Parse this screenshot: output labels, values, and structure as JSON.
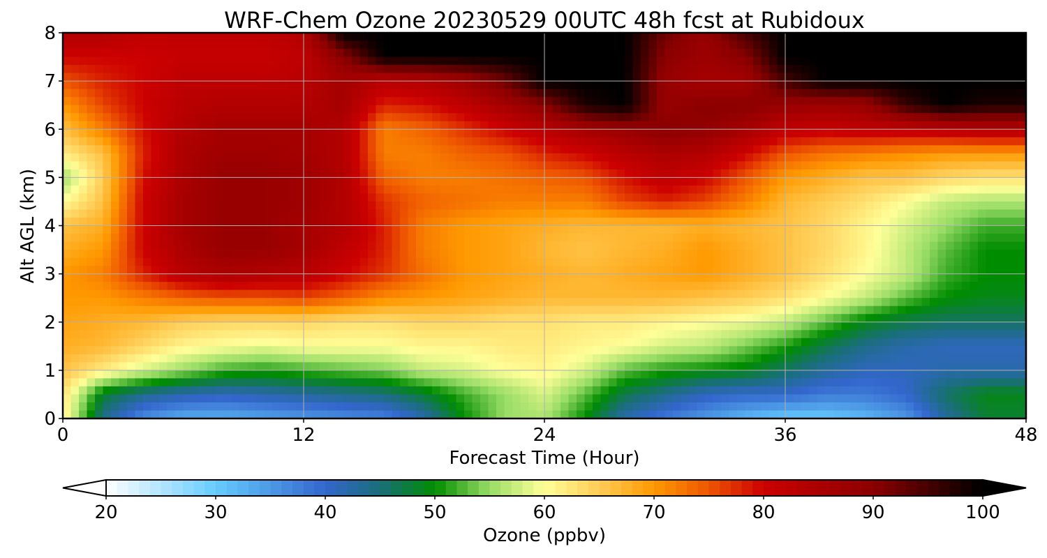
{
  "chart_data": {
    "type": "heatmap",
    "title": "WRF-Chem Ozone  20230529 00UTC 48h fcst at Rubidoux",
    "xlabel": "Forecast Time (Hour)",
    "ylabel": "Alt AGL (km)",
    "x_ticks": [
      "0",
      "12",
      "24",
      "36",
      "48"
    ],
    "y_ticks": [
      "0",
      "1",
      "2",
      "3",
      "4",
      "5",
      "6",
      "7",
      "8"
    ],
    "xlim": [
      0,
      48
    ],
    "ylim": [
      0,
      8
    ],
    "grid": true,
    "x": [
      0,
      2,
      4,
      6,
      8,
      10,
      12,
      14,
      16,
      18,
      20,
      22,
      24,
      26,
      28,
      30,
      32,
      34,
      36,
      38,
      40,
      42,
      44,
      46,
      48
    ],
    "y": [
      0,
      0.5,
      1,
      1.5,
      2,
      2.5,
      3,
      3.5,
      4,
      4.5,
      5,
      5.5,
      6,
      6.5,
      7,
      7.5,
      8
    ],
    "values": [
      [
        62,
        44,
        36,
        33,
        33,
        34,
        35,
        36,
        37,
        42,
        50,
        55,
        56,
        50,
        42,
        38,
        35,
        32,
        30,
        30,
        32,
        35,
        43,
        48,
        48
      ],
      [
        63,
        48,
        44,
        42,
        41,
        42,
        43,
        44,
        45,
        48,
        52,
        55,
        58,
        53,
        47,
        44,
        41,
        40,
        40,
        38,
        38,
        40,
        46,
        49,
        49
      ],
      [
        66,
        62,
        58,
        55,
        52,
        51,
        52,
        53,
        54,
        57,
        58,
        60,
        61,
        58,
        53,
        51,
        50,
        49,
        46,
        43,
        41,
        41,
        42,
        42,
        42
      ],
      [
        68,
        67,
        64,
        61,
        60,
        59,
        60,
        60,
        60,
        61,
        61,
        62,
        62,
        61,
        60,
        58,
        57,
        54,
        51,
        47,
        44,
        42,
        41,
        41,
        41
      ],
      [
        69,
        68,
        67,
        65,
        64,
        64,
        64,
        63,
        63,
        64,
        64,
        63,
        63,
        62,
        62,
        61,
        60,
        59,
        57,
        53,
        49,
        47,
        46,
        46,
        46
      ],
      [
        70,
        70,
        72,
        74,
        75,
        75,
        76,
        74,
        71,
        70,
        69,
        68,
        67,
        67,
        67,
        67,
        66,
        65,
        63,
        60,
        57,
        53,
        50,
        49,
        49
      ],
      [
        70,
        72,
        78,
        83,
        85,
        84,
        83,
        80,
        77,
        73,
        70,
        69,
        68,
        67,
        68,
        69,
        70,
        68,
        66,
        63,
        60,
        57,
        52,
        50,
        50
      ],
      [
        68,
        70,
        80,
        85,
        88,
        88,
        86,
        82,
        78,
        72,
        70,
        69,
        67,
        66,
        67,
        68,
        70,
        68,
        66,
        64,
        61,
        57,
        53,
        50,
        50
      ],
      [
        66,
        68,
        80,
        86,
        88,
        88,
        86,
        84,
        78,
        72,
        70,
        69,
        68,
        67,
        67,
        67,
        68,
        67,
        66,
        64,
        61,
        58,
        55,
        52,
        52
      ],
      [
        60,
        66,
        80,
        86,
        88,
        88,
        87,
        84,
        77,
        74,
        73,
        72,
        72,
        72,
        76,
        78,
        76,
        72,
        67,
        65,
        63,
        60,
        57,
        56,
        56
      ],
      [
        55,
        65,
        79,
        85,
        88,
        88,
        87,
        84,
        74,
        72,
        72,
        73,
        74,
        75,
        79,
        82,
        80,
        75,
        70,
        68,
        66,
        66,
        64,
        63,
        63
      ],
      [
        62,
        66,
        78,
        85,
        87,
        87,
        86,
        84,
        72,
        72,
        74,
        75,
        78,
        80,
        83,
        85,
        84,
        80,
        75,
        73,
        72,
        71,
        70,
        70,
        70
      ],
      [
        66,
        72,
        79,
        84,
        86,
        86,
        86,
        84,
        72,
        74,
        77,
        80,
        83,
        86,
        88,
        90,
        89,
        86,
        82,
        81,
        82,
        82,
        83,
        84,
        84
      ],
      [
        70,
        76,
        80,
        83,
        84,
        84,
        84,
        86,
        78,
        79,
        82,
        86,
        90,
        98,
        100,
        88,
        90,
        90,
        88,
        87,
        88,
        96,
        100,
        98,
        98
      ],
      [
        75,
        78,
        80,
        82,
        82,
        82,
        83,
        86,
        83,
        84,
        87,
        92,
        100,
        100,
        100,
        88,
        86,
        86,
        95,
        100,
        100,
        100,
        100,
        100,
        100
      ],
      [
        80,
        80,
        80,
        81,
        81,
        81,
        82,
        90,
        100,
        100,
        100,
        100,
        100,
        100,
        100,
        90,
        87,
        90,
        100,
        100,
        100,
        100,
        100,
        100,
        100
      ],
      [
        84,
        84,
        82,
        82,
        82,
        82,
        84,
        100,
        100,
        100,
        100,
        100,
        100,
        100,
        100,
        92,
        88,
        95,
        100,
        100,
        100,
        100,
        100,
        100,
        100
      ]
    ],
    "colorbar": {
      "label": "Ozone  (ppbv)",
      "range": [
        20,
        100
      ],
      "ticks": [
        "20",
        "30",
        "40",
        "50",
        "60",
        "70",
        "80",
        "90",
        "100"
      ],
      "extend": "both",
      "stops": [
        {
          "v": 20,
          "c": "#ffffff"
        },
        {
          "v": 30,
          "c": "#66ccff"
        },
        {
          "v": 40,
          "c": "#3366cc"
        },
        {
          "v": 45,
          "c": "#1a6e7a"
        },
        {
          "v": 50,
          "c": "#008c00"
        },
        {
          "v": 55,
          "c": "#99dd66"
        },
        {
          "v": 60,
          "c": "#ffff99"
        },
        {
          "v": 65,
          "c": "#ffcc55"
        },
        {
          "v": 70,
          "c": "#ff9900"
        },
        {
          "v": 75,
          "c": "#ee5500"
        },
        {
          "v": 80,
          "c": "#cc0000"
        },
        {
          "v": 90,
          "c": "#8b0000"
        },
        {
          "v": 100,
          "c": "#000000"
        }
      ]
    }
  }
}
